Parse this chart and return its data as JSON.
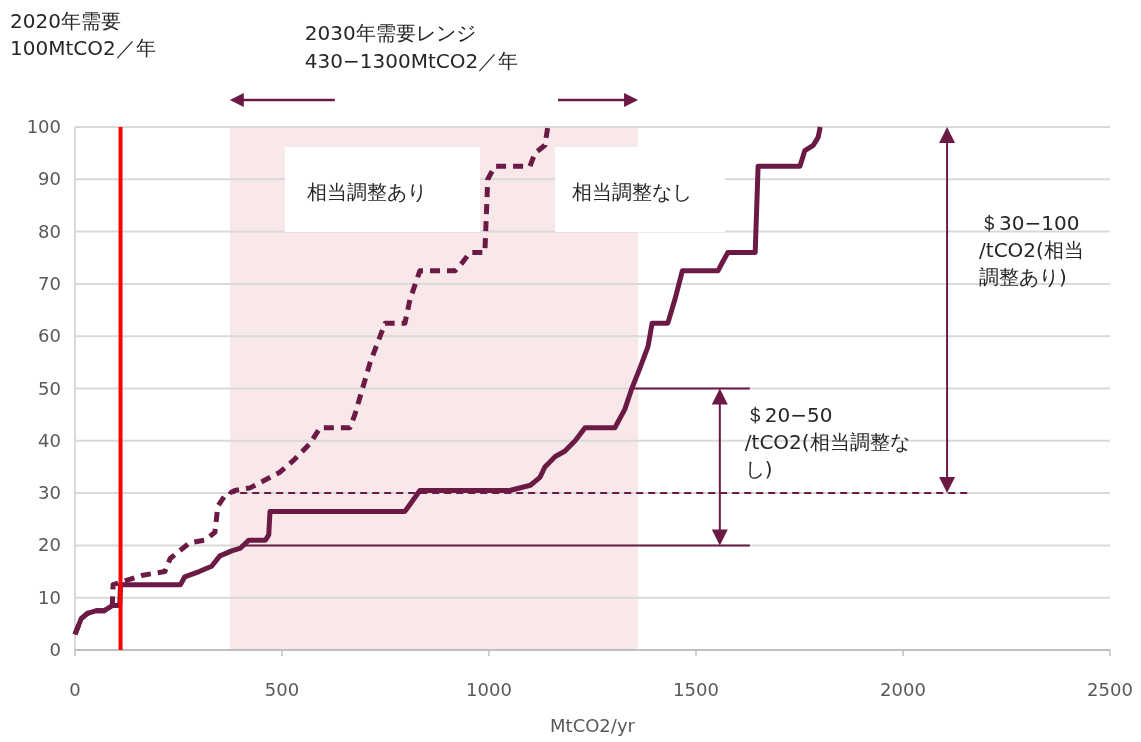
{
  "chart_data": {
    "type": "line",
    "xlabel": "MtCO2/yr",
    "xlim": [
      0,
      2500
    ],
    "xticks": [
      0,
      500,
      1000,
      1500,
      2000,
      2500
    ],
    "ylim": [
      0,
      100
    ],
    "yticks": [
      0,
      10,
      20,
      30,
      40,
      50,
      60,
      70,
      80,
      90,
      100
    ],
    "grid": "y",
    "marker": "none",
    "series": [
      {
        "color": "#6b1a45",
        "line_style": "dashed",
        "x": [
          0,
          15,
          30,
          50,
          70,
          90,
          92,
          164,
          217,
          230,
          253,
          277,
          314,
          338,
          345,
          362,
          386,
          423,
          459,
          495,
          531,
          568,
          592,
          664,
          676,
          713,
          749,
          797,
          809,
          833,
          918,
          935,
          954,
          990,
          997,
          1014,
          1099,
          1111,
          1135,
          1142
        ],
        "values": [
          3,
          6,
          7,
          7.5,
          7.5,
          8.5,
          12.5,
          14.3,
          15,
          17.5,
          19,
          20.5,
          21,
          22.5,
          27.5,
          29.5,
          30.5,
          31,
          32.5,
          34,
          36.5,
          39.5,
          42.5,
          42.5,
          45,
          55,
          62.5,
          62.5,
          67,
          72.5,
          72.5,
          74,
          76,
          76,
          90,
          92.5,
          92.5,
          95,
          96.5,
          100
        ]
      },
      {
        "color": "#6b1a45",
        "line_style": "solid",
        "x": [
          0,
          15,
          30,
          50,
          70,
          90,
          108,
          110,
          255,
          265,
          300,
          330,
          350,
          380,
          400,
          420,
          460,
          468,
          471,
          797,
          815,
          833,
          1050,
          1100,
          1123,
          1135,
          1160,
          1183,
          1208,
          1232,
          1304,
          1328,
          1345,
          1365,
          1384,
          1394,
          1432,
          1449,
          1467,
          1553,
          1563,
          1577,
          1643,
          1650,
          1751,
          1763,
          1783,
          1795,
          1800
        ],
        "values": [
          3,
          6,
          7,
          7.5,
          7.5,
          8.5,
          8.5,
          12.5,
          12.5,
          14,
          15,
          16,
          18,
          19,
          19.5,
          21,
          21,
          22,
          26.5,
          26.5,
          28.5,
          30.5,
          30.5,
          31.5,
          33,
          35,
          37,
          38,
          40,
          42.5,
          42.5,
          46,
          50,
          54,
          58,
          62.5,
          62.5,
          67,
          72.5,
          72.5,
          74,
          76,
          76,
          92.5,
          92.5,
          95.5,
          96.5,
          98,
          100
        ]
      },
      {
        "color": "#6b1a45",
        "line_style": "solid",
        "x": [
          400,
          1630
        ],
        "values": [
          20,
          20
        ]
      },
      {
        "color": "#6b1a45",
        "line_style": "solid",
        "x": [
          1345,
          1630
        ],
        "values": [
          50,
          50
        ]
      },
      {
        "color": "#6b1a45",
        "line_style": "dashed",
        "x": [
          370,
          2162
        ],
        "values": [
          30,
          30
        ]
      }
    ],
    "ref_lines": [
      {
        "axis": "x",
        "value": 110,
        "color": "#ff0000"
      }
    ],
    "bands": [
      {
        "axis": "x",
        "from": 374,
        "to": 1360,
        "color": "#f8e8e9",
        "label": "2030年需要レンジ\n430−1300MtCO2／年"
      }
    ],
    "annotations": [
      "2020年需要\n100MtCO2／年",
      "相当調整あり",
      "相当調整なし",
      "＄20−50\n/tCO2(相当調整なし)",
      "＄30−100\n/tCO2(相当調整あり)"
    ]
  }
}
